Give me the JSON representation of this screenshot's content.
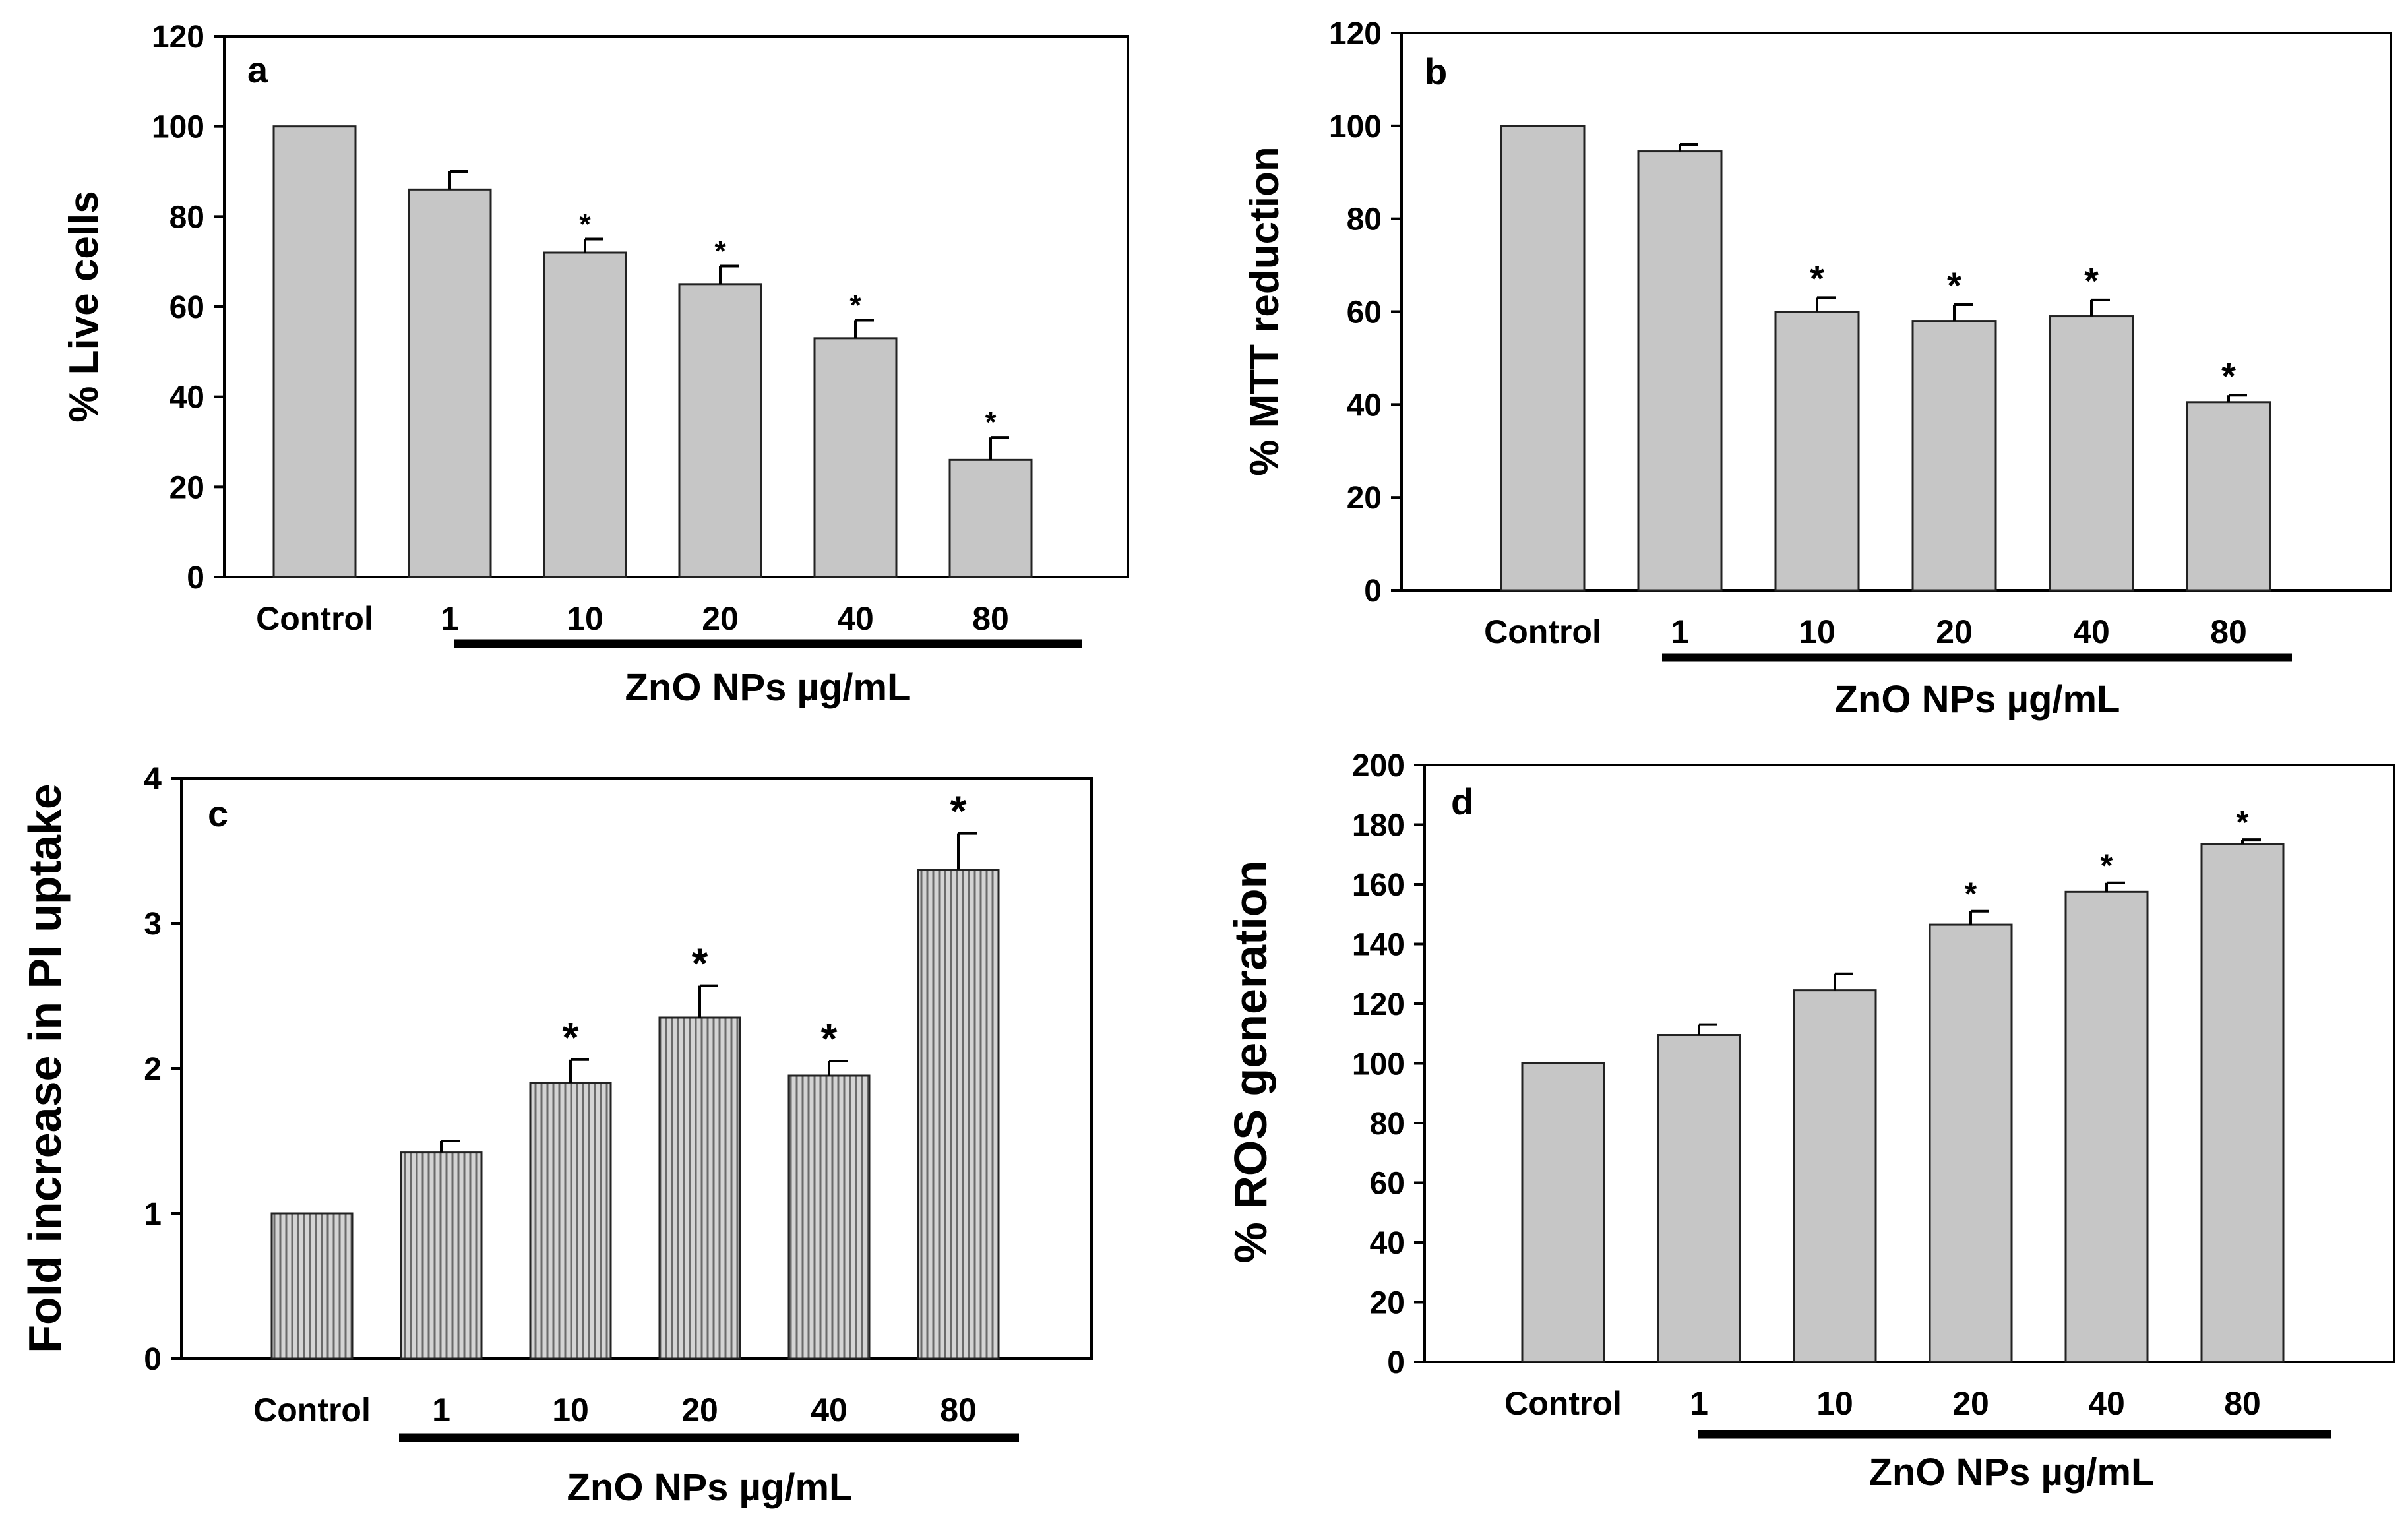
{
  "chart_data": [
    {
      "panel": "a",
      "type": "bar",
      "title": "",
      "xlabel": "ZnO NPs µg/mL",
      "ylabel": "% Live cells",
      "categories": [
        "Control",
        "1",
        "10",
        "20",
        "40",
        "80"
      ],
      "values": [
        100,
        86,
        72,
        65,
        53,
        26
      ],
      "errors": [
        0,
        4,
        3,
        4,
        4,
        5
      ],
      "significant": [
        false,
        false,
        true,
        true,
        true,
        true
      ],
      "significance_marker": "*",
      "ylim": [
        0,
        120
      ],
      "yticks": [
        0,
        20,
        40,
        60,
        80,
        100,
        120
      ],
      "bar_style": "solid",
      "grid": false
    },
    {
      "panel": "b",
      "type": "bar",
      "title": "",
      "xlabel": "ZnO NPs µg/mL",
      "ylabel": "% MTT reduction",
      "categories": [
        "Control",
        "1",
        "10",
        "20",
        "40",
        "80"
      ],
      "values": [
        100,
        94.5,
        60,
        58,
        59,
        40.5
      ],
      "errors": [
        0,
        1.5,
        3,
        3.5,
        3.5,
        1.5
      ],
      "significant": [
        false,
        false,
        true,
        true,
        true,
        true
      ],
      "significance_marker": "*",
      "ylim": [
        0,
        120
      ],
      "yticks": [
        0,
        20,
        40,
        60,
        80,
        100,
        120
      ],
      "bar_style": "solid",
      "grid": false
    },
    {
      "panel": "c",
      "type": "bar",
      "title": "",
      "xlabel": "ZnO NPs µg/mL",
      "ylabel": "Fold increase in PI uptake",
      "categories": [
        "Control",
        "1",
        "10",
        "20",
        "40",
        "80"
      ],
      "values": [
        1.0,
        1.42,
        1.9,
        2.35,
        1.95,
        3.37
      ],
      "errors": [
        0,
        0.08,
        0.16,
        0.22,
        0.1,
        0.25
      ],
      "significant": [
        false,
        false,
        true,
        true,
        true,
        true
      ],
      "significance_marker": "*",
      "ylim": [
        0,
        4
      ],
      "yticks": [
        0,
        1,
        2,
        3,
        4
      ],
      "bar_style": "hatched",
      "grid": false
    },
    {
      "panel": "d",
      "type": "bar",
      "title": "",
      "xlabel": "ZnO NPs µg/mL",
      "ylabel": "% ROS generation",
      "categories": [
        "Control",
        "1",
        "10",
        "20",
        "40",
        "80"
      ],
      "values": [
        100,
        109.5,
        124.5,
        146.5,
        157.5,
        173.5
      ],
      "errors": [
        0,
        3.5,
        5.5,
        4.5,
        3,
        1.5
      ],
      "significant": [
        false,
        false,
        false,
        true,
        true,
        true
      ],
      "significance_marker": "*",
      "ylim": [
        0,
        200
      ],
      "yticks": [
        0,
        20,
        40,
        60,
        80,
        100,
        120,
        140,
        160,
        180,
        200
      ],
      "bar_style": "solid",
      "grid": false
    }
  ]
}
